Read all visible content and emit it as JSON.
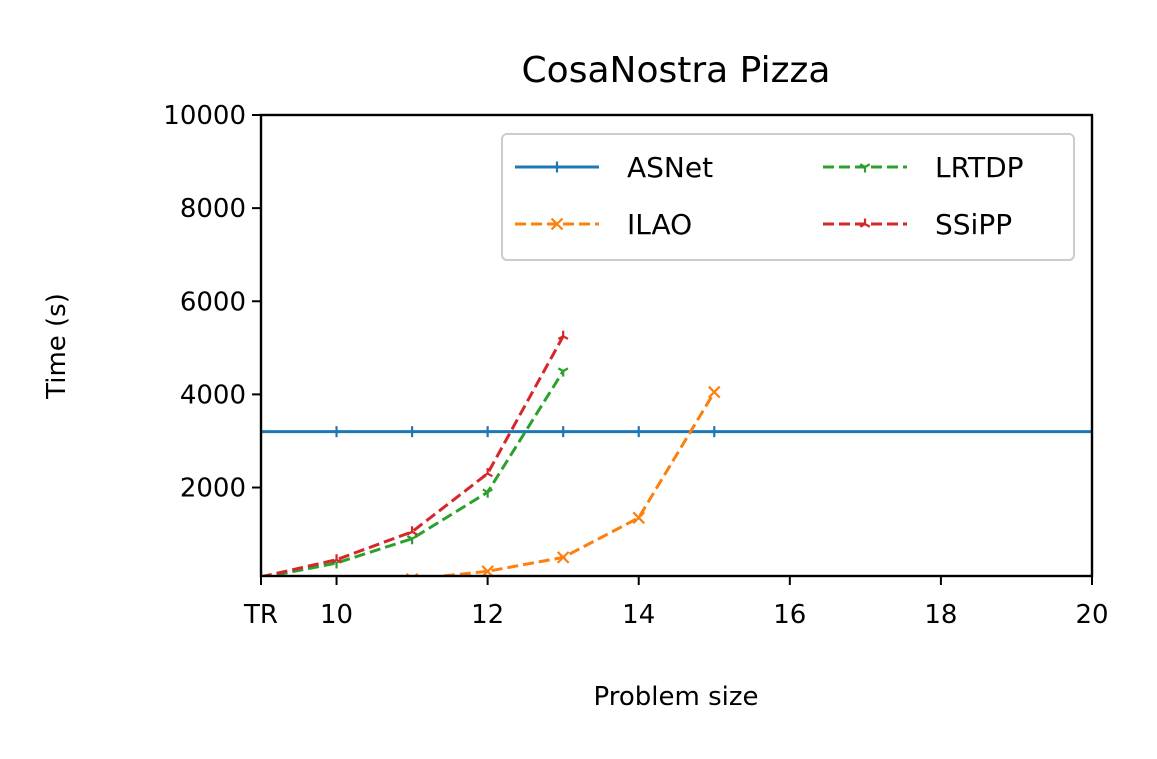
{
  "chart_data": {
    "type": "line",
    "title": "CosaNostra Pizza",
    "xlabel": "Problem size",
    "ylabel": "Time (s)",
    "xlim": [
      9,
      20
    ],
    "ylim": [
      100,
      10000
    ],
    "x_ticks": [
      9,
      10,
      12,
      14,
      16,
      18,
      20
    ],
    "x_tick_labels": [
      "TR",
      "10",
      "12",
      "14",
      "16",
      "18",
      "20"
    ],
    "y_ticks": [
      2000,
      4000,
      6000,
      8000,
      10000
    ],
    "y_tick_labels": [
      "2000",
      "4000",
      "6000",
      "8000",
      "10000"
    ],
    "grid": false,
    "legend_position": "top-right",
    "legend_columns": 2,
    "series": [
      {
        "name": "ASNet",
        "color": "#1f77b4",
        "linestyle": "solid",
        "marker": "plus",
        "points": [
          [
            9,
            3200
          ],
          [
            10,
            3200
          ],
          [
            11,
            3200
          ],
          [
            12,
            3200
          ],
          [
            13,
            3200
          ],
          [
            14,
            3200
          ],
          [
            15,
            3200
          ],
          [
            20,
            3200
          ]
        ],
        "marker_points": [
          [
            10,
            3200
          ],
          [
            11,
            3200
          ],
          [
            12,
            3200
          ],
          [
            13,
            3200
          ],
          [
            14,
            3200
          ],
          [
            15,
            3200
          ]
        ]
      },
      {
        "name": "ILAO",
        "color": "#ff7f0e",
        "linestyle": "dashed",
        "marker": "x",
        "points": [
          [
            11,
            30
          ],
          [
            12,
            200
          ],
          [
            13,
            500
          ],
          [
            14,
            1350
          ],
          [
            15,
            4050
          ]
        ],
        "marker_points": [
          [
            11,
            30
          ],
          [
            12,
            200
          ],
          [
            13,
            500
          ],
          [
            14,
            1350
          ],
          [
            15,
            4050
          ]
        ]
      },
      {
        "name": "LRTDP",
        "color": "#2ca02c",
        "linestyle": "dashed",
        "marker": "tri_down",
        "points": [
          [
            9,
            60
          ],
          [
            10,
            380
          ],
          [
            11,
            900
          ],
          [
            12,
            1900
          ],
          [
            13,
            4500
          ]
        ],
        "marker_points": [
          [
            9,
            60
          ],
          [
            10,
            380
          ],
          [
            11,
            900
          ],
          [
            12,
            1900
          ],
          [
            13,
            4500
          ]
        ]
      },
      {
        "name": "SSiPP",
        "color": "#d62728",
        "linestyle": "dashed",
        "marker": "tri_up",
        "points": [
          [
            9,
            80
          ],
          [
            10,
            450
          ],
          [
            11,
            1050
          ],
          [
            12,
            2300
          ],
          [
            13,
            5250
          ]
        ],
        "marker_points": [
          [
            9,
            80
          ],
          [
            10,
            450
          ],
          [
            11,
            1050
          ],
          [
            12,
            2300
          ],
          [
            13,
            5250
          ]
        ]
      }
    ]
  }
}
